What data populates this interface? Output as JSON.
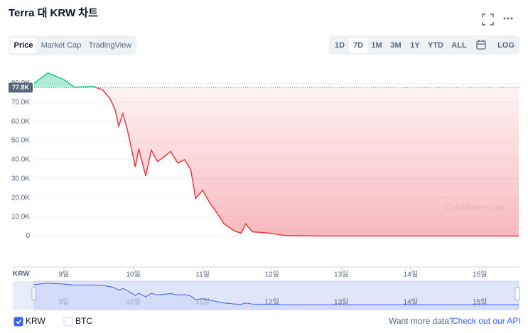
{
  "header": {
    "title": "Terra 대 KRW 차트"
  },
  "tabs": [
    "Price",
    "Market Cap",
    "TradingView"
  ],
  "active_tab": 0,
  "ranges": [
    "1D",
    "7D",
    "1M",
    "3M",
    "1Y",
    "YTD",
    "ALL",
    "LOG"
  ],
  "active_range": 1,
  "chart_data": {
    "type": "line",
    "x": [
      8.57,
      8.77,
      9.0,
      9.15,
      9.41,
      9.56,
      9.67,
      9.74,
      9.79,
      9.85,
      9.92,
      10.03,
      10.08,
      10.18,
      10.26,
      10.35,
      10.46,
      10.54,
      10.64,
      10.74,
      10.83,
      10.9,
      11.0,
      11.1,
      11.21,
      11.31,
      11.46,
      11.56,
      11.62,
      11.72,
      11.97,
      12.18,
      12.69,
      15.56
    ],
    "values": [
      80000,
      85500,
      82000,
      78000,
      78500,
      76600,
      71700,
      66000,
      57600,
      64200,
      55000,
      36300,
      45700,
      31500,
      45000,
      39000,
      42000,
      44300,
      38300,
      40000,
      34600,
      19600,
      24000,
      17600,
      12000,
      6400,
      2600,
      1500,
      6400,
      2200,
      1500,
      300,
      0,
      0
    ],
    "up_color": "#16c784",
    "down_color": "#ea3943",
    "reference": {
      "value": 77800,
      "label": "77.8K"
    },
    "xlim": [
      8.57,
      15.56
    ],
    "ylim": [
      -14000,
      88000
    ],
    "xticks": [
      {
        "value": 9,
        "label": "9일"
      },
      {
        "value": 10,
        "label": "10일"
      },
      {
        "value": 11,
        "label": "11일"
      },
      {
        "value": 12,
        "label": "12일"
      },
      {
        "value": 13,
        "label": "13일"
      },
      {
        "value": 14,
        "label": "14일"
      },
      {
        "value": 15,
        "label": "15일"
      }
    ],
    "yticks": [
      0,
      {
        "value": 10000,
        "label": "10.0K"
      },
      {
        "value": 20000,
        "label": "20.0K"
      },
      {
        "value": 30000,
        "label": "30.0K"
      },
      {
        "value": 40000,
        "label": "40.0K"
      },
      {
        "value": 50000,
        "label": "50.0K"
      },
      {
        "value": 60000,
        "label": "60.0K"
      },
      {
        "value": 70000,
        "label": "70.0K"
      },
      {
        "value": 80000,
        "label": "80.0K"
      }
    ],
    "grid": true,
    "x_axis_label": "KRW",
    "watermark": "CoinMarketCap"
  },
  "footer": {
    "currencies": [
      {
        "label": "KRW",
        "checked": true
      },
      {
        "label": "BTC",
        "checked": false
      }
    ],
    "prompt": "Want more data?",
    "link": "Check out our API"
  }
}
